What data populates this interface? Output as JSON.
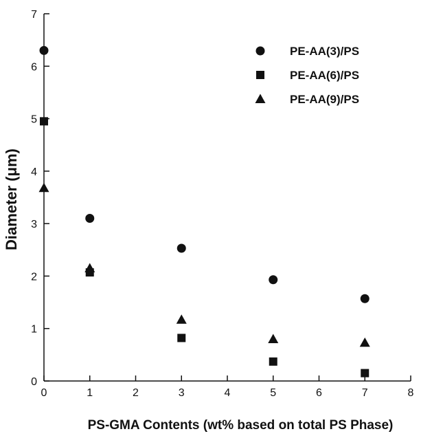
{
  "chart_data": {
    "type": "scatter",
    "xlabel": "PS-GMA Contents (wt% based on total PS Phase)",
    "ylabel": "Diameter (μm)",
    "xlim": [
      0,
      8
    ],
    "ylim": [
      0,
      7
    ],
    "x_ticks": [
      "0",
      "1",
      "2",
      "3",
      "4",
      "5",
      "6",
      "7",
      "8"
    ],
    "y_ticks": [
      "0",
      "1",
      "2",
      "3",
      "4",
      "5",
      "6",
      "7"
    ],
    "grid": false,
    "legend_position": "top-right",
    "series": [
      {
        "name": "PE-AA(3)/PS",
        "marker": "circle",
        "color": "#111111",
        "x": [
          0,
          1,
          3,
          5,
          7
        ],
        "y": [
          6.3,
          3.1,
          2.53,
          1.93,
          1.57
        ]
      },
      {
        "name": "PE-AA(6)/PS",
        "marker": "square",
        "color": "#111111",
        "x": [
          0,
          1,
          3,
          5,
          7
        ],
        "y": [
          4.95,
          2.07,
          0.82,
          0.37,
          0.15
        ]
      },
      {
        "name": "PE-AA(9)/PS",
        "marker": "triangle",
        "color": "#111111",
        "x": [
          0,
          1,
          3,
          5,
          7
        ],
        "y": [
          3.68,
          2.15,
          1.17,
          0.8,
          0.73
        ]
      }
    ]
  }
}
